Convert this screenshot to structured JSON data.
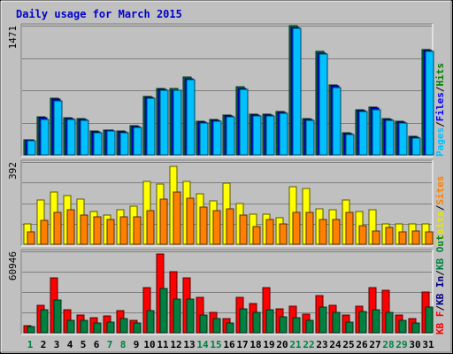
{
  "title": "Daily usage for March 2015",
  "chart_data": [
    {
      "type": "bar",
      "panel": "top",
      "ymax_label": "1471",
      "ylim": [
        0,
        1471
      ],
      "grid": true,
      "legend_position": "right",
      "legend": [
        {
          "label": "Pages",
          "color": "#00c0ff"
        },
        {
          "label": "/",
          "color": "#000000"
        },
        {
          "label": "Files",
          "color": "#0000ff"
        },
        {
          "label": "/",
          "color": "#000000"
        },
        {
          "label": "Hits",
          "color": "#008000"
        }
      ],
      "categories": [
        "1",
        "2",
        "3",
        "4",
        "5",
        "6",
        "7",
        "8",
        "9",
        "10",
        "11",
        "12",
        "13",
        "14",
        "15",
        "16",
        "17",
        "18",
        "19",
        "20",
        "21",
        "22",
        "23",
        "24",
        "25",
        "26",
        "27",
        "28",
        "29",
        "30",
        "31"
      ],
      "series": [
        {
          "name": "Hits",
          "color": "#008040",
          "values": [
            175,
            432,
            644,
            424,
            414,
            268,
            285,
            270,
            330,
            665,
            760,
            755,
            887,
            384,
            400,
            455,
            778,
            460,
            460,
            490,
            1471,
            410,
            1175,
            800,
            250,
            517,
            540,
            410,
            380,
            210,
            1197
          ]
        },
        {
          "name": "Files",
          "color": "#0000ff",
          "values": [
            170,
            420,
            630,
            410,
            400,
            260,
            280,
            260,
            320,
            650,
            750,
            740,
            870,
            370,
            390,
            440,
            760,
            450,
            450,
            480,
            1450,
            400,
            1160,
            790,
            240,
            500,
            530,
            400,
            370,
            200,
            1190
          ]
        },
        {
          "name": "Pages",
          "color": "#00c0ff",
          "values": [
            165,
            405,
            610,
            400,
            390,
            255,
            270,
            255,
            310,
            640,
            740,
            740,
            860,
            365,
            385,
            430,
            750,
            440,
            440,
            470,
            1440,
            395,
            1150,
            770,
            235,
            490,
            515,
            390,
            360,
            195,
            1180
          ]
        }
      ]
    },
    {
      "type": "bar",
      "panel": "middle",
      "ymax_label": "392",
      "ylim": [
        0,
        392
      ],
      "grid": true,
      "legend_position": "right",
      "legend": [
        {
          "label": "Visits",
          "color": "#e8e800"
        },
        {
          "label": "/",
          "color": "#000000"
        },
        {
          "label": "Sites",
          "color": "#ff8000"
        }
      ],
      "categories": [
        "1",
        "2",
        "3",
        "4",
        "5",
        "6",
        "7",
        "8",
        "9",
        "10",
        "11",
        "12",
        "13",
        "14",
        "15",
        "16",
        "17",
        "18",
        "19",
        "20",
        "21",
        "22",
        "23",
        "24",
        "25",
        "26",
        "27",
        "28",
        "29",
        "30",
        "31"
      ],
      "series": [
        {
          "name": "Visits",
          "color": "#ffff00",
          "values": [
            95,
            210,
            250,
            230,
            215,
            155,
            140,
            165,
            180,
            300,
            285,
            370,
            300,
            240,
            205,
            290,
            195,
            145,
            145,
            125,
            275,
            265,
            170,
            165,
            210,
            155,
            165,
            95,
            95,
            95,
            95
          ]
        },
        {
          "name": "Sites",
          "color": "#ff8000",
          "values": [
            60,
            115,
            150,
            165,
            140,
            130,
            120,
            130,
            130,
            160,
            215,
            250,
            220,
            175,
            160,
            170,
            140,
            85,
            120,
            95,
            150,
            150,
            120,
            120,
            150,
            88,
            65,
            80,
            60,
            65,
            60
          ]
        }
      ]
    },
    {
      "type": "bar",
      "panel": "bottom",
      "ymax_label": "60946",
      "ylim": [
        0,
        60946
      ],
      "grid": true,
      "legend_position": "right",
      "legend": [
        {
          "label": "KB F",
          "color": "#ff0000"
        },
        {
          "label": "/",
          "color": "#000000"
        },
        {
          "label": "KB In",
          "color": "#000080"
        },
        {
          "label": "/",
          "color": "#000000"
        },
        {
          "label": "KB Out",
          "color": "#008040"
        }
      ],
      "categories": [
        "1",
        "2",
        "3",
        "4",
        "5",
        "6",
        "7",
        "8",
        "9",
        "10",
        "11",
        "12",
        "13",
        "14",
        "15",
        "16",
        "17",
        "18",
        "19",
        "20",
        "21",
        "22",
        "23",
        "24",
        "25",
        "26",
        "27",
        "28",
        "29",
        "30",
        "31"
      ],
      "series": [
        {
          "name": "KB F",
          "color": "#ff0000",
          "values": [
            5000,
            20500,
            41000,
            17000,
            13000,
            11000,
            12500,
            16500,
            9500,
            34000,
            59000,
            46000,
            41000,
            26500,
            15000,
            10500,
            26500,
            22000,
            33500,
            18000,
            20000,
            14000,
            28000,
            20500,
            13000,
            20000,
            33500,
            31500,
            13000,
            10500,
            30500
          ]
        },
        {
          "name": "KB Out",
          "color": "#008040",
          "values": [
            4500,
            17500,
            24500,
            9500,
            9000,
            7000,
            8000,
            10500,
            7000,
            16500,
            33000,
            25500,
            25000,
            13000,
            10500,
            7000,
            18000,
            15500,
            17500,
            12000,
            11000,
            9000,
            19000,
            15000,
            8000,
            16000,
            17500,
            15500,
            9000,
            7000,
            19500
          ]
        }
      ]
    }
  ]
}
